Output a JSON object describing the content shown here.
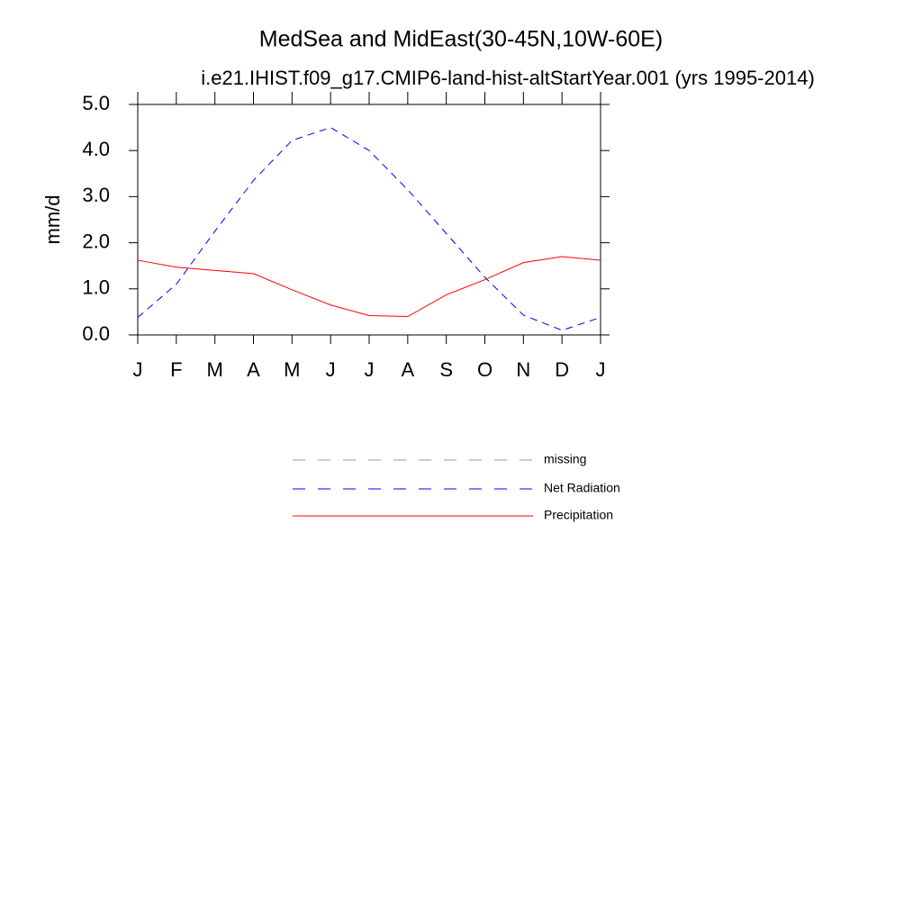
{
  "chart_data": {
    "type": "line",
    "title": "MedSea and MidEast(30-45N,10W-60E)",
    "subtitle": "i.e21.IHIST.f09_g17.CMIP6-land-hist-altStartYear.001 (yrs 1995-2014)",
    "y_label": "mm/d",
    "categories": [
      "J",
      "F",
      "M",
      "A",
      "M",
      "J",
      "J",
      "A",
      "S",
      "O",
      "N",
      "D",
      "J"
    ],
    "ylim": [
      0,
      5
    ],
    "yticks": [
      {
        "value": 0,
        "label": "0.0"
      },
      {
        "value": 1,
        "label": "1.0"
      },
      {
        "value": 2,
        "label": "2.0"
      },
      {
        "value": 3,
        "label": "3.0"
      },
      {
        "value": 4,
        "label": "4.0"
      },
      {
        "value": 5,
        "label": "5.0"
      }
    ],
    "grid": false,
    "series": [
      {
        "name": "missing",
        "color": "#999999",
        "dashed": true,
        "values": [
          null,
          null,
          null,
          null,
          null,
          null,
          null,
          null,
          null,
          null,
          null,
          null,
          null
        ]
      },
      {
        "name": "Net Radiation",
        "color": "#0000ff",
        "dashed": true,
        "values": [
          0.38,
          1.1,
          2.25,
          3.35,
          4.22,
          4.5,
          4.0,
          3.15,
          2.2,
          1.25,
          0.43,
          0.1,
          0.38
        ]
      },
      {
        "name": "Precipitation",
        "color": "#ff0000",
        "dashed": false,
        "values": [
          1.62,
          1.47,
          1.4,
          1.33,
          0.98,
          0.65,
          0.42,
          0.4,
          0.87,
          1.2,
          1.57,
          1.7,
          1.62
        ]
      }
    ]
  }
}
